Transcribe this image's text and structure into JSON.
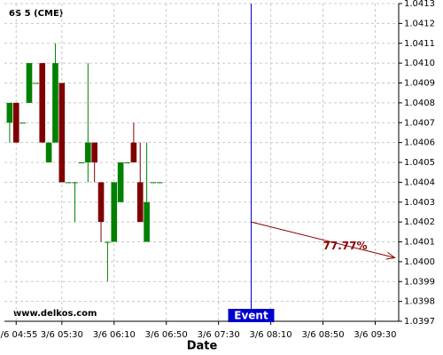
{
  "chart_data": {
    "type": "candlestick",
    "title": "6S 5 (CME)",
    "xlabel": "Date",
    "watermark": "www.delkos.com",
    "x": [
      "3/6 04:50",
      "3/6 04:55",
      "3/6 05:00",
      "3/6 05:05",
      "3/6 05:10",
      "3/6 05:15",
      "3/6 05:20",
      "3/6 05:25",
      "3/6 05:30",
      "3/6 05:35",
      "3/6 05:40",
      "3/6 05:45",
      "3/6 05:50",
      "3/6 05:55",
      "3/6 06:00",
      "3/6 06:05",
      "3/6 06:10",
      "3/6 06:15",
      "3/6 06:20",
      "3/6 06:25",
      "3/6 06:30",
      "3/6 06:35",
      "3/6 06:40",
      "3/6 06:45"
    ],
    "open": [
      1.0407,
      1.0408,
      1.0407,
      1.0408,
      1.0409,
      1.041,
      1.0405,
      1.0406,
      1.0409,
      1.0404,
      1.0404,
      1.0405,
      1.0405,
      1.0406,
      1.0404,
      1.0401,
      1.0401,
      1.0403,
      1.0405,
      1.0406,
      1.0404,
      1.0401,
      1.0404,
      1.0404
    ],
    "high": [
      1.0408,
      1.0408,
      1.0407,
      1.041,
      1.0409,
      1.041,
      1.0406,
      1.0411,
      1.0409,
      1.0404,
      1.0404,
      1.0405,
      1.041,
      1.0406,
      1.0404,
      1.0401,
      1.0404,
      1.0405,
      1.0405,
      1.0407,
      1.0406,
      1.0406,
      1.0404,
      1.0404
    ],
    "low": [
      1.0406,
      1.0406,
      1.0407,
      1.0408,
      1.0409,
      1.0406,
      1.0405,
      1.0406,
      1.0404,
      1.0404,
      1.0402,
      1.0405,
      1.0404,
      1.0404,
      1.0401,
      1.0399,
      1.0401,
      1.0403,
      1.0405,
      1.0405,
      1.0402,
      1.0401,
      1.0404,
      1.0404
    ],
    "close": [
      1.0408,
      1.0406,
      1.0407,
      1.041,
      1.0409,
      1.0406,
      1.0406,
      1.041,
      1.0404,
      1.0404,
      1.0404,
      1.0405,
      1.0406,
      1.0405,
      1.0402,
      1.0401,
      1.0404,
      1.0405,
      1.0405,
      1.0405,
      1.0402,
      1.0403,
      1.0404,
      1.0404
    ],
    "up_color": "#008000",
    "down_color": "#800000",
    "xlim": [
      "3/6 04:46",
      "3/6 09:48"
    ],
    "xticks": [
      "3/6 04:55",
      "3/6 05:30",
      "3/6 06:10",
      "3/6 06:50",
      "3/6 07:30",
      "3/6 08:10",
      "3/6 08:50",
      "3/6 09:30"
    ],
    "ylim": [
      1.0397,
      1.0413
    ],
    "yticks": [
      {
        "value": 1.0397,
        "label": "1.0397"
      },
      {
        "value": 1.0398,
        "label": "1.0398"
      },
      {
        "value": 1.0399,
        "label": "1.0399"
      },
      {
        "value": 1.04,
        "label": "1.0400"
      },
      {
        "value": 1.0401,
        "label": "1.0401"
      },
      {
        "value": 1.0402,
        "label": "1.0402"
      },
      {
        "value": 1.0403,
        "label": "1.0403"
      },
      {
        "value": 1.0404,
        "label": "1.0404"
      },
      {
        "value": 1.0405,
        "label": "1.0405"
      },
      {
        "value": 1.0406,
        "label": "1.0406"
      },
      {
        "value": 1.0407,
        "label": "1.0407"
      },
      {
        "value": 1.0408,
        "label": "1.0408"
      },
      {
        "value": 1.0409,
        "label": "1.0409"
      },
      {
        "value": 1.041,
        "label": "1.0410"
      },
      {
        "value": 1.0411,
        "label": "1.0411"
      },
      {
        "value": 1.0412,
        "label": "1.0412"
      },
      {
        "value": 1.0413,
        "label": "1.0413"
      }
    ],
    "grid": true,
    "event": {
      "x": "3/6 07:55",
      "label": "Event",
      "color": "#0000cc"
    },
    "arrow": {
      "x": [
        "3/6 07:55",
        "3/6 09:45"
      ],
      "y": [
        1.0402,
        1.04002
      ],
      "label": "77.77%",
      "color": "#8b0000"
    }
  }
}
